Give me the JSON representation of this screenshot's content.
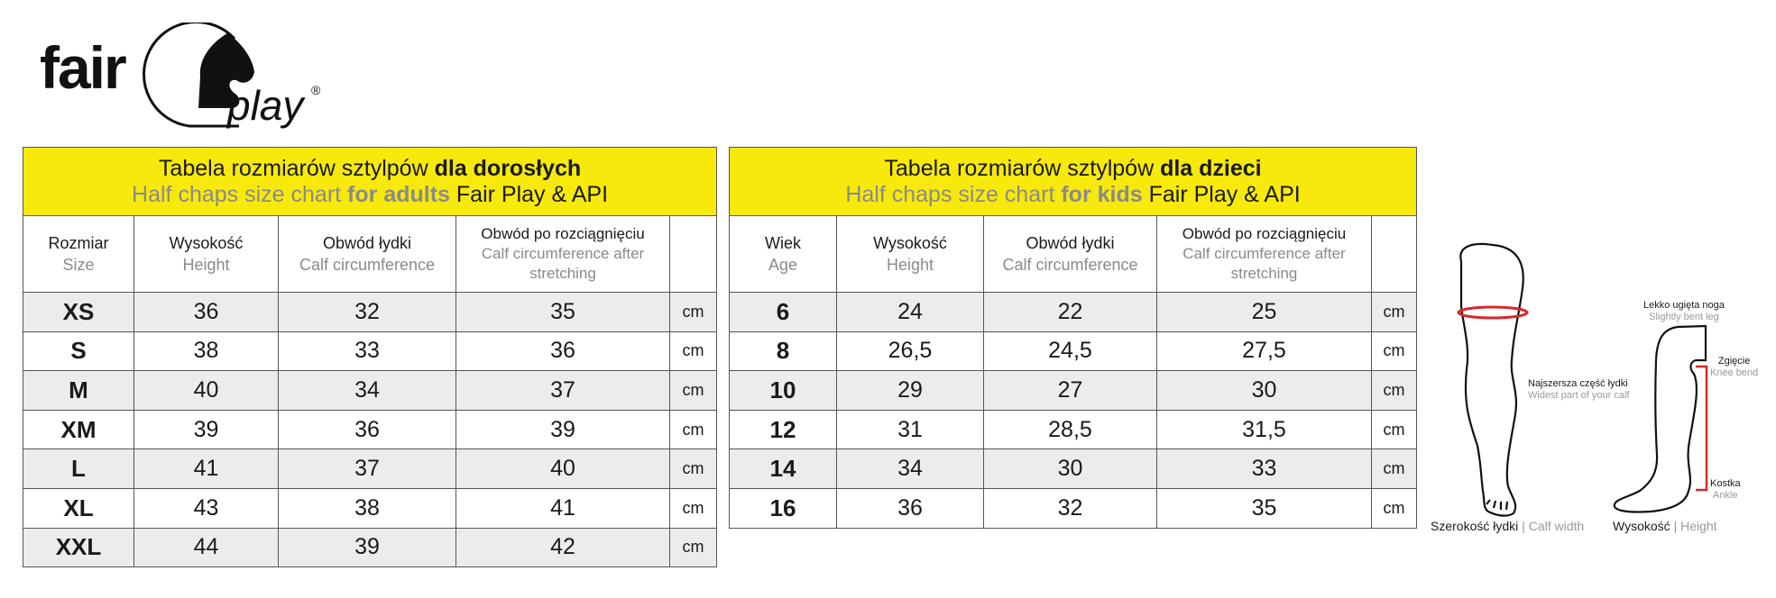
{
  "logo": {
    "text": "fair play",
    "registered": "®"
  },
  "adults": {
    "title_pl_prefix": "Tabela rozmiarów sztylpów ",
    "title_pl_bold": "dla dorosłych",
    "title_en_prefix": "Half chaps size chart ",
    "title_en_bold": "for adults",
    "title_en_suffix": " Fair Play & API",
    "headers": [
      {
        "pl": "Rozmiar",
        "en": "Size"
      },
      {
        "pl": "Wysokość",
        "en": "Height"
      },
      {
        "pl": "Obwód łydki",
        "en": "Calf circumference"
      },
      {
        "pl": "Obwód po rozciągnięciu",
        "en": "Calf circumference after stretching"
      }
    ],
    "unit": "cm",
    "rows": [
      [
        "XS",
        "36",
        "32",
        "35"
      ],
      [
        "S",
        "38",
        "33",
        "36"
      ],
      [
        "M",
        "40",
        "34",
        "37"
      ],
      [
        "XM",
        "39",
        "36",
        "39"
      ],
      [
        "L",
        "41",
        "37",
        "40"
      ],
      [
        "XL",
        "43",
        "38",
        "41"
      ],
      [
        "XXL",
        "44",
        "39",
        "42"
      ]
    ]
  },
  "kids": {
    "title_pl_prefix": "Tabela rozmiarów sztylpów ",
    "title_pl_bold": "dla dzieci",
    "title_en_prefix": "Half chaps size chart ",
    "title_en_bold": "for kids",
    "title_en_suffix": " Fair Play & API",
    "headers": [
      {
        "pl": "Wiek",
        "en": "Age"
      },
      {
        "pl": "Wysokość",
        "en": "Height"
      },
      {
        "pl": "Obwód łydki",
        "en": "Calf circumference"
      },
      {
        "pl": "Obwód po rozciągnięciu",
        "en": "Calf circumference after stretching"
      }
    ],
    "unit": "cm",
    "rows": [
      [
        "6",
        "24",
        "22",
        "25"
      ],
      [
        "8",
        "26,5",
        "24,5",
        "27,5"
      ],
      [
        "10",
        "29",
        "27",
        "30"
      ],
      [
        "12",
        "31",
        "28,5",
        "31,5"
      ],
      [
        "14",
        "34",
        "30",
        "33"
      ],
      [
        "16",
        "36",
        "32",
        "35"
      ]
    ]
  },
  "diagram": {
    "widest_pl": "Najszersza część łydki",
    "widest_en": "Widest part of your calf",
    "bent_pl": "Lekko ugięta noga",
    "bent_en": "Slightly bent leg",
    "knee_pl": "Zgięcie",
    "knee_en": "Knee bend",
    "ankle_pl": "Kostka",
    "ankle_en": "Ankle",
    "cap1_pl": "Szerokość łydki",
    "cap1_en": "Calf width",
    "cap2_pl": "Wysokość",
    "cap2_en": "Height",
    "separator": "|"
  },
  "colors": {
    "header_yellow": "#f7e90c",
    "row_shade": "#ececec",
    "measure_red": "#d42a2a"
  }
}
